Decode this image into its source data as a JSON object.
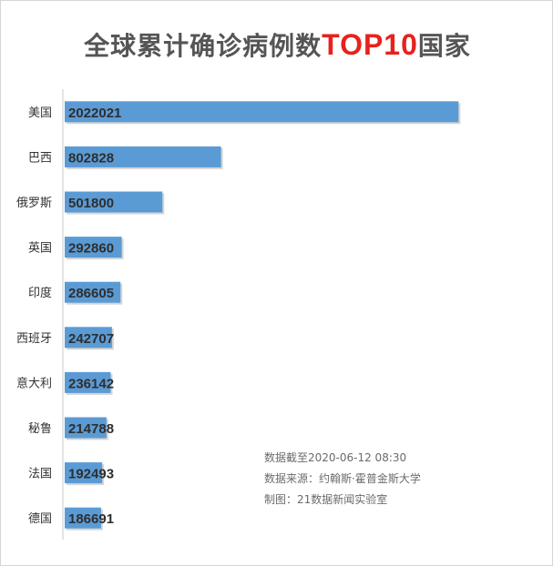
{
  "title": {
    "prefix": "全球累计确诊病例数",
    "highlight": "TOP10",
    "suffix": "国家"
  },
  "notes": [
    "数据截至2020-06-12 08:30",
    "数据来源：约翰斯·霍普金斯大学",
    "制图：21数据新闻实验室"
  ],
  "colors": {
    "bar": "#5b9bd5",
    "title": "#555555",
    "highlight": "#e8211c",
    "axis": "#c8c8c8"
  },
  "chart_data": {
    "type": "bar",
    "orientation": "horizontal",
    "categories": [
      "美国",
      "巴西",
      "俄罗斯",
      "英国",
      "印度",
      "西班牙",
      "意大利",
      "秘鲁",
      "法国",
      "德国"
    ],
    "values": [
      2022021,
      802828,
      501800,
      292860,
      286605,
      242707,
      236142,
      214788,
      192493,
      186691
    ],
    "xlim": [
      0,
      2030000
    ],
    "grid": false,
    "legend": "none"
  }
}
